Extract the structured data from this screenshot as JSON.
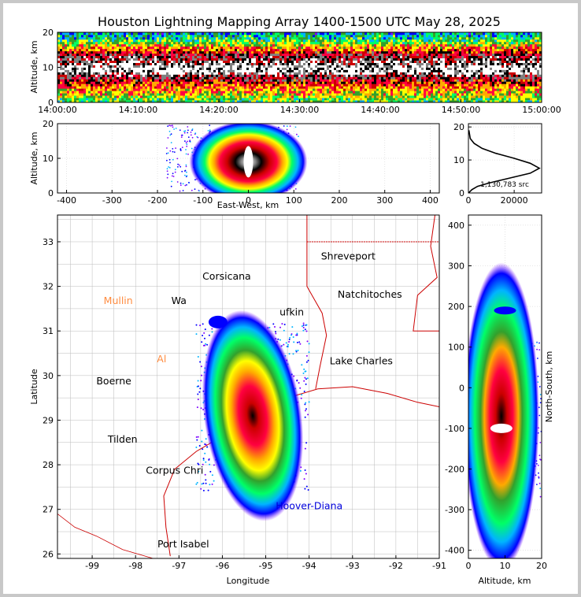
{
  "title": "Houston Lightning Mapping Array 1400-1500 UTC May 28, 2025",
  "colors": {
    "ramp": [
      "#7f00ff",
      "#0000ff",
      "#00b4ff",
      "#00ff66",
      "#33a02c",
      "#ffff00",
      "#ffaa00",
      "#ff0040",
      "#cc0000",
      "#000000",
      "#808080",
      "#ffffff"
    ],
    "state_border": "#cc0000",
    "county_border": "#bbbbbb",
    "coast": "#cc0000"
  },
  "chart_data": [
    {
      "id": "time_height",
      "type": "heatmap",
      "ylabel": "Altitude, km",
      "xlim": [
        "14:00:00",
        "15:00:00"
      ],
      "ylim": [
        0,
        20
      ],
      "x_ticks": [
        "14:00:00",
        "14:10:00",
        "14:20:00",
        "14:30:00",
        "14:40:00",
        "14:50:00",
        "15:00:00"
      ],
      "y_ticks": [
        0,
        10,
        20
      ],
      "profile_altitude_km": [
        0,
        2,
        4,
        6,
        8,
        9,
        10,
        12,
        14,
        16,
        18,
        20
      ],
      "profile_level": [
        0.3,
        0.45,
        0.55,
        0.7,
        0.85,
        0.95,
        0.95,
        0.85,
        0.75,
        0.5,
        0.3,
        0.2
      ]
    },
    {
      "id": "ew_height",
      "type": "heatmap",
      "xlabel": "East-West, km",
      "ylabel": "Altitude, km",
      "xlim": [
        -420,
        420
      ],
      "ylim": [
        0,
        20
      ],
      "x_ticks": [
        -400,
        -300,
        -200,
        -100,
        0,
        100,
        200,
        300,
        400
      ],
      "y_ticks": [
        0,
        10,
        20
      ],
      "core_x_km": 0,
      "core_altitude_km": 9,
      "extent_x_km": [
        -180,
        110
      ]
    },
    {
      "id": "altitude_histogram",
      "type": "line",
      "xlim": [
        0,
        32000
      ],
      "ylim": [
        0,
        21
      ],
      "x_ticks": [
        0,
        20000
      ],
      "y_ticks": [
        0,
        10,
        20
      ],
      "annotation": "1,130,783 src",
      "x": [
        50,
        1500,
        4000,
        9000,
        18000,
        27000,
        31000,
        27000,
        20000,
        12000,
        6000,
        2500,
        800,
        200
      ],
      "y": [
        0,
        1,
        2,
        3,
        4.5,
        6,
        7.5,
        9,
        10.5,
        12,
        13.5,
        15,
        16.5,
        19
      ]
    },
    {
      "id": "plan_view",
      "type": "heatmap",
      "xlabel": "Longitude",
      "ylabel": "Latitude",
      "xlim": [
        -99.8,
        -91.0
      ],
      "ylim": [
        25.9,
        33.6
      ],
      "x_ticks": [
        -99,
        -98,
        -97,
        -96,
        -95,
        -94,
        -93,
        -92,
        -91
      ],
      "y_ticks": [
        26,
        27,
        28,
        29,
        30,
        31,
        32,
        33
      ],
      "cities": [
        {
          "name": "Shreveport",
          "lon": -93.1,
          "lat": 32.6,
          "color": "#000000"
        },
        {
          "name": "Corsicana",
          "lon": -95.9,
          "lat": 32.15,
          "color": "#000000"
        },
        {
          "name": "Natchitoches",
          "lon": -92.6,
          "lat": 31.75,
          "color": "#000000"
        },
        {
          "name": "Mullin",
          "lon": -98.4,
          "lat": 31.6,
          "color": "#ff8c40"
        },
        {
          "name": "Wa",
          "lon": -97.0,
          "lat": 31.6,
          "color": "#000000"
        },
        {
          "name": "ufkin",
          "lon": -94.4,
          "lat": 31.35,
          "color": "#000000"
        },
        {
          "name": "Lake Charles",
          "lon": -92.8,
          "lat": 30.25,
          "color": "#000000"
        },
        {
          "name": "Al",
          "lon": -97.4,
          "lat": 30.3,
          "color": "#ff8c40"
        },
        {
          "name": "Boerne",
          "lon": -98.5,
          "lat": 29.8,
          "color": "#000000"
        },
        {
          "name": "Tilden",
          "lon": -98.3,
          "lat": 28.5,
          "color": "#000000"
        },
        {
          "name": "Corpus Chri",
          "lon": -97.1,
          "lat": 27.8,
          "color": "#000000"
        },
        {
          "name": "Hoover-Diana",
          "lon": -94.0,
          "lat": 27.0,
          "color": "#0000dd"
        },
        {
          "name": "Port Isabel",
          "lon": -96.9,
          "lat": 26.15,
          "color": "#000000"
        }
      ],
      "storm_core": {
        "lon": -95.3,
        "lat": 29.1
      }
    },
    {
      "id": "ns_height",
      "type": "heatmap",
      "xlabel": "Altitude, km",
      "ylabel": "North-South, km",
      "xlim": [
        0,
        20
      ],
      "ylim": [
        -420,
        425
      ],
      "x_ticks": [
        0,
        10,
        20
      ],
      "y_ticks": [
        -400,
        -300,
        -200,
        -100,
        0,
        100,
        200,
        300,
        400
      ]
    }
  ]
}
